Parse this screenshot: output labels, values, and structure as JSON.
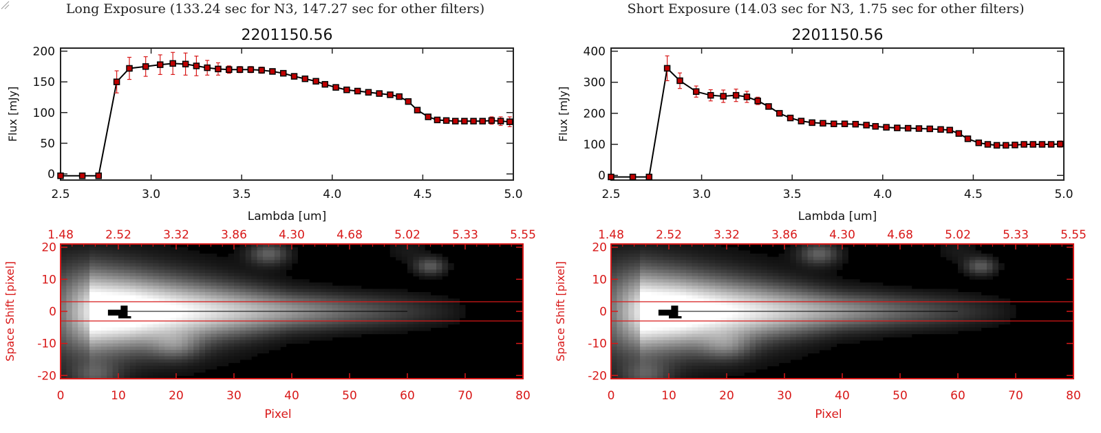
{
  "colors": {
    "accent_red": "#d81818",
    "line": "#000000",
    "marker": "#c00000",
    "frame": "#222222"
  },
  "panels": [
    {
      "caption": "Long Exposure (133.24 sec for N3, 147.27 sec for other filters)",
      "chart_data": [
        {
          "type": "line",
          "title": "2201150.56",
          "xlabel": "Lambda [um]",
          "ylabel": "Flux [mJy]",
          "xlim": [
            2.5,
            5.0
          ],
          "ylim": [
            -10,
            205
          ],
          "xticks": [
            "2.5",
            "3.0",
            "3.5",
            "4.0",
            "4.5",
            "5.0"
          ],
          "yticks": [
            "0",
            "50",
            "100",
            "150",
            "200"
          ],
          "ytick_values": [
            0,
            50,
            100,
            150,
            200
          ],
          "xtick_values": [
            2.5,
            3.0,
            3.5,
            4.0,
            4.5,
            5.0
          ],
          "series": [
            {
              "x": [
                2.5,
                2.62,
                2.71,
                2.81,
                2.88,
                2.97,
                3.05,
                3.12,
                3.19,
                3.25,
                3.31,
                3.37,
                3.43,
                3.49,
                3.55,
                3.61,
                3.67,
                3.73,
                3.79,
                3.85,
                3.91,
                3.96,
                4.02,
                4.08,
                4.14,
                4.2,
                4.26,
                4.32,
                4.37,
                4.42,
                4.47,
                4.53,
                4.58,
                4.63,
                4.68,
                4.73,
                4.78,
                4.83,
                4.88,
                4.93,
                4.98
              ],
              "y": [
                -3,
                -3,
                -3,
                150,
                172,
                175,
                178,
                180,
                179,
                176,
                173,
                171,
                170,
                170,
                170,
                169,
                167,
                164,
                159,
                155,
                151,
                146,
                141,
                137,
                135,
                133,
                131,
                129,
                126,
                118,
                104,
                93,
                88,
                87,
                86,
                86,
                86,
                86,
                87,
                86,
                85
              ],
              "err": [
                0,
                0,
                0,
                18,
                18,
                16,
                16,
                18,
                18,
                16,
                12,
                10,
                6,
                5,
                5,
                5,
                4,
                4,
                4,
                4,
                4,
                4,
                4,
                4,
                4,
                4,
                4,
                4,
                4,
                4,
                4,
                4,
                4,
                4,
                4,
                4,
                4,
                4,
                6,
                7,
                8
              ]
            }
          ]
        },
        {
          "type": "heatmap",
          "xlabel": "Pixel",
          "ylabel": "Space Shift [pixel]",
          "xlim": [
            0,
            80
          ],
          "ylim": [
            -21,
            21
          ],
          "xticks": [
            "0",
            "10",
            "20",
            "30",
            "40",
            "50",
            "60",
            "70",
            "80"
          ],
          "xtick_values": [
            0,
            10,
            20,
            30,
            40,
            50,
            60,
            70,
            80
          ],
          "yticks": [
            "20",
            "10",
            "0",
            "-10",
            "-20"
          ],
          "ytick_values": [
            20,
            10,
            0,
            -10,
            -20
          ],
          "top_ticks": [
            "1.48",
            "2.52",
            "3.32",
            "3.86",
            "4.30",
            "4.68",
            "5.02",
            "5.33",
            "5.55"
          ],
          "aperture_lines": [
            3,
            -3
          ]
        }
      ]
    },
    {
      "caption": "Short Exposure (14.03 sec for N3, 1.75 sec for other filters)",
      "chart_data": [
        {
          "type": "line",
          "title": "2201150.56",
          "xlabel": "Lambda [um]",
          "ylabel": "Flux [mJy]",
          "xlim": [
            2.5,
            5.0
          ],
          "ylim": [
            -15,
            410
          ],
          "xticks": [
            "2.5",
            "3.0",
            "3.5",
            "4.0",
            "4.5",
            "5.0"
          ],
          "yticks": [
            "0",
            "100",
            "200",
            "300",
            "400"
          ],
          "ytick_values": [
            0,
            100,
            200,
            300,
            400
          ],
          "xtick_values": [
            2.5,
            3.0,
            3.5,
            4.0,
            4.5,
            5.0
          ],
          "series": [
            {
              "x": [
                2.5,
                2.62,
                2.71,
                2.81,
                2.88,
                2.97,
                3.05,
                3.12,
                3.19,
                3.25,
                3.31,
                3.37,
                3.43,
                3.49,
                3.55,
                3.61,
                3.67,
                3.73,
                3.79,
                3.85,
                3.91,
                3.96,
                4.02,
                4.08,
                4.14,
                4.2,
                4.26,
                4.32,
                4.37,
                4.42,
                4.47,
                4.53,
                4.58,
                4.63,
                4.68,
                4.73,
                4.78,
                4.83,
                4.88,
                4.93,
                4.98
              ],
              "y": [
                -5,
                -5,
                -5,
                345,
                305,
                270,
                258,
                255,
                258,
                253,
                240,
                222,
                200,
                185,
                175,
                170,
                168,
                166,
                166,
                165,
                162,
                158,
                155,
                153,
                152,
                151,
                150,
                148,
                146,
                135,
                118,
                105,
                100,
                97,
                97,
                98,
                100,
                100,
                100,
                100,
                101
              ],
              "err": [
                0,
                0,
                0,
                40,
                25,
                18,
                18,
                20,
                20,
                18,
                12,
                8,
                6,
                5,
                5,
                5,
                4,
                4,
                4,
                4,
                4,
                4,
                4,
                4,
                4,
                4,
                4,
                4,
                4,
                4,
                4,
                4,
                4,
                4,
                4,
                4,
                4,
                4,
                4,
                4,
                10
              ]
            }
          ]
        },
        {
          "type": "heatmap",
          "xlabel": "Pixel",
          "ylabel": "Space Shift [pixel]",
          "xlim": [
            0,
            80
          ],
          "ylim": [
            -21,
            21
          ],
          "xticks": [
            "0",
            "10",
            "20",
            "30",
            "40",
            "50",
            "60",
            "70",
            "80"
          ],
          "xtick_values": [
            0,
            10,
            20,
            30,
            40,
            50,
            60,
            70,
            80
          ],
          "yticks": [
            "20",
            "10",
            "0",
            "-10",
            "-20"
          ],
          "ytick_values": [
            20,
            10,
            0,
            -10,
            -20
          ],
          "top_ticks": [
            "1.48",
            "2.52",
            "3.32",
            "3.86",
            "4.30",
            "4.68",
            "5.02",
            "5.33",
            "5.55"
          ],
          "aperture_lines": [
            3,
            -3
          ]
        }
      ]
    }
  ]
}
